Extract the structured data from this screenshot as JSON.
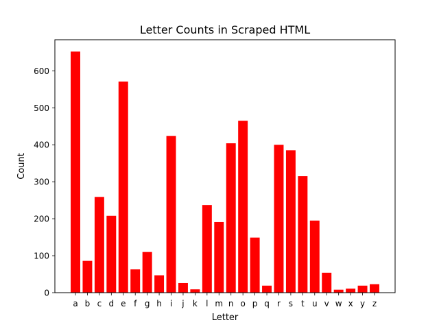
{
  "chart_data": {
    "type": "bar",
    "title": "Letter Counts in Scraped HTML",
    "xlabel": "Letter",
    "ylabel": "Count",
    "categories": [
      "a",
      "b",
      "c",
      "d",
      "e",
      "f",
      "g",
      "h",
      "i",
      "j",
      "k",
      "l",
      "m",
      "n",
      "o",
      "p",
      "q",
      "r",
      "s",
      "t",
      "u",
      "v",
      "w",
      "x",
      "y",
      "z"
    ],
    "values": [
      652,
      86,
      259,
      208,
      571,
      63,
      110,
      47,
      424,
      26,
      9,
      237,
      191,
      404,
      465,
      149,
      19,
      400,
      385,
      315,
      195,
      54,
      8,
      11,
      19,
      23
    ],
    "yticks": [
      0,
      100,
      200,
      300,
      400,
      500,
      600
    ],
    "ylim": [
      0,
      684
    ],
    "bar_color": "#ff0000",
    "grid": false,
    "legend": "none"
  }
}
